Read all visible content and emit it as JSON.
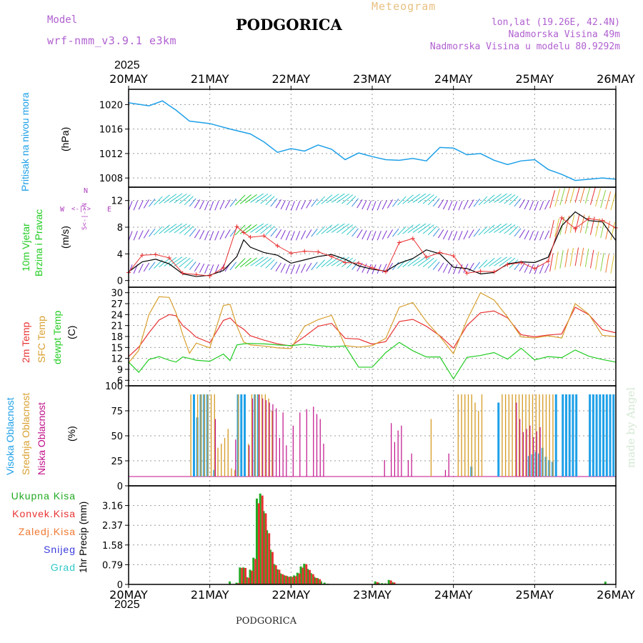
{
  "header": {
    "model_label": "Model",
    "model_value": "wrf-nmm_v3.9.1 e3km",
    "station": "PODGORICA",
    "product": "Meteogram",
    "lonlat": "lon,lat (19.26E, 42.4N)",
    "altitude": "Nadmorska Visina 49m",
    "model_altitude": "Nadmorska Visina u modelu 80.9292m",
    "year": "2025",
    "footer_station": "PODGORICA",
    "watermark": "made by Angel"
  },
  "colors": {
    "pressure": "#1ea0e8",
    "wind_speed": "#000000",
    "gust": "#e83232",
    "t2m": "#e83232",
    "sfc_temp": "#d8a030",
    "dewpoint": "#22cc22",
    "high_cloud": "#1ea0e8",
    "mid_cloud": "#d8a030",
    "low_cloud": "#c0108a",
    "total_precip": "#22aa22",
    "conv_precip": "#e83232",
    "frozen_precip": "#f07830",
    "snow": "#3a3adc",
    "hail": "#30c8c8",
    "compass": "#b040c0"
  },
  "time_axis": {
    "labels": [
      "20MAY",
      "21MAY",
      "22MAY",
      "23MAY",
      "24MAY",
      "25MAY",
      "26MAY"
    ],
    "bottom_year": "2025"
  },
  "legends": {
    "pressure": [
      "Pritisak na nivou mora",
      "(hPa)"
    ],
    "wind": [
      "10m Vjetar",
      "Brzina i Pravac",
      "(m/s)"
    ],
    "compass": {
      "n": "N",
      "s": "S",
      "w": "W",
      "e": "E",
      "axis_v": "S<-|->N",
      "axis_h": "<-|->"
    },
    "temp": [
      "2m Temp",
      "SFC Temp",
      "dewpt Temp",
      "(C)"
    ],
    "cloud": [
      "Visoka Oblacnost",
      "Srednja Oblacnost",
      "Niska Oblacnost",
      "(%)"
    ],
    "precip_series": [
      "Ukupna Kisa",
      "Konvek.Kisa",
      "Zaledj.Kisa",
      "Snijeg",
      "Grad"
    ],
    "precip_unit": "1hr Precip (mm)"
  },
  "chart_data": [
    {
      "type": "line",
      "panel": "pressure",
      "ylabel": "(hPa)",
      "yticks": [
        "1008",
        "1012",
        "1016",
        "1020"
      ],
      "ylim": [
        1006.5,
        1022.5
      ],
      "x_hours": [
        0,
        6,
        10,
        14,
        18,
        24,
        30,
        36,
        40,
        44,
        48,
        52,
        56,
        60,
        64,
        68,
        72,
        76,
        80,
        84,
        88,
        92,
        96,
        100,
        104,
        108,
        112,
        116,
        120,
        124,
        128,
        132,
        136,
        140,
        144
      ],
      "series": [
        {
          "name": "Pritisak na nivou mora",
          "values": [
            1020.3,
            1019.8,
            1020.6,
            1019.1,
            1017.3,
            1016.9,
            1016.0,
            1015.2,
            1013.9,
            1012.2,
            1012.8,
            1012.4,
            1013.4,
            1012.7,
            1011.0,
            1012.1,
            1011.5,
            1011.0,
            1010.9,
            1011.2,
            1010.8,
            1013.0,
            1012.9,
            1011.8,
            1012.0,
            1010.9,
            1010.2,
            1010.8,
            1011.0,
            1009.4,
            1008.6,
            1007.6,
            1007.8,
            1008.0,
            1007.8
          ]
        }
      ]
    },
    {
      "type": "line",
      "panel": "wind",
      "ylabel": "(m/s)",
      "yticks": [
        "0",
        "4",
        "8",
        "12"
      ],
      "ylim": [
        -1,
        14
      ],
      "x_hours": [
        0,
        4,
        8,
        12,
        16,
        20,
        24,
        28,
        32,
        34,
        36,
        40,
        44,
        48,
        52,
        56,
        60,
        64,
        68,
        72,
        76,
        80,
        84,
        88,
        92,
        96,
        100,
        104,
        108,
        112,
        116,
        120,
        124,
        128,
        132,
        136,
        140,
        144
      ],
      "series": [
        {
          "name": "Wind speed",
          "values": [
            1.3,
            2.8,
            3.2,
            2.5,
            1.0,
            0.6,
            0.8,
            1.5,
            3.6,
            6.1,
            5.0,
            4.2,
            3.8,
            2.6,
            3.1,
            3.6,
            3.9,
            3.2,
            2.2,
            1.7,
            1.4,
            2.6,
            3.3,
            4.6,
            4.0,
            2.0,
            1.8,
            1.0,
            1.2,
            2.5,
            2.8,
            2.7,
            3.5,
            8.2,
            10.3,
            9.0,
            8.8,
            6.0
          ]
        },
        {
          "name": "Gust",
          "values": [
            1.2,
            3.8,
            3.9,
            3.4,
            1.1,
            0.9,
            0.7,
            1.9,
            8.1,
            7.2,
            6.5,
            6.7,
            5.2,
            4.1,
            4.4,
            4.3,
            3.6,
            2.7,
            2.6,
            1.9,
            1.3,
            5.7,
            6.3,
            3.5,
            4.2,
            3.7,
            1.1,
            1.4,
            1.3,
            2.4,
            2.7,
            1.8,
            2.9,
            9.4,
            7.8,
            9.3,
            9.0,
            7.9
          ]
        }
      ]
    },
    {
      "type": "line",
      "panel": "temperature",
      "ylabel": "(C)",
      "yticks": [
        "6",
        "9",
        "12",
        "15",
        "18",
        "21",
        "24",
        "27",
        "30"
      ],
      "ylim": [
        4.5,
        31.5
      ],
      "x_hours": [
        0,
        3,
        6,
        9,
        12,
        14,
        16,
        18,
        20,
        24,
        28,
        30,
        32,
        34,
        36,
        40,
        44,
        48,
        52,
        56,
        60,
        64,
        68,
        72,
        76,
        80,
        84,
        88,
        92,
        96,
        100,
        104,
        108,
        112,
        116,
        120,
        124,
        128,
        132,
        136,
        140,
        144
      ],
      "series": [
        {
          "name": "2m Temp",
          "values": [
            12.5,
            15.1,
            19.0,
            22.5,
            24.0,
            23.7,
            21.0,
            19.5,
            17.8,
            16.3,
            22.4,
            23.1,
            21.2,
            20.0,
            18.2,
            17.0,
            16.0,
            15.4,
            18.0,
            20.8,
            21.6,
            17.5,
            17.3,
            15.9,
            16.6,
            22.1,
            22.7,
            20.8,
            18.2,
            14.8,
            21.0,
            24.5,
            25.0,
            23.1,
            18.5,
            17.9,
            18.4,
            18.7,
            26.0,
            24.0,
            19.9,
            19.0
          ]
        },
        {
          "name": "SFC Temp",
          "values": [
            10.8,
            14.2,
            24.0,
            28.9,
            28.7,
            24.5,
            18.5,
            13.4,
            16.2,
            14.9,
            26.5,
            26.8,
            20.9,
            16.5,
            15.7,
            15.4,
            14.9,
            14.7,
            20.8,
            22.6,
            23.8,
            15.5,
            15.1,
            15.5,
            17.5,
            26.0,
            27.3,
            22.1,
            18.0,
            13.3,
            22.5,
            30.0,
            28.0,
            23.3,
            17.9,
            17.6,
            18.2,
            17.6,
            27.0,
            24.1,
            18.3,
            18.0
          ]
        },
        {
          "name": "dewpt Temp",
          "values": [
            11.0,
            8.2,
            11.7,
            12.5,
            11.5,
            11.0,
            12.4,
            12.0,
            11.5,
            11.2,
            13.2,
            11.4,
            15.7,
            16.0,
            16.1,
            16.0,
            15.7,
            15.5,
            15.9,
            15.5,
            15.2,
            15.4,
            9.6,
            9.6,
            13.6,
            16.4,
            14.1,
            12.4,
            12.4,
            6.4,
            12.3,
            12.8,
            13.6,
            11.8,
            14.8,
            11.6,
            12.5,
            12.2,
            14.3,
            12.6,
            11.7,
            11.0
          ]
        }
      ]
    },
    {
      "type": "bar",
      "panel": "clouds",
      "ylabel": "(%)",
      "yticks": [
        "0",
        "25",
        "50",
        "75",
        "100"
      ],
      "ylim": [
        0,
        100
      ],
      "series": [
        {
          "name": "Visoka Oblacnost",
          "hours": [
            19,
            20,
            21,
            22,
            23,
            25,
            32,
            33,
            34,
            37,
            38,
            101,
            109,
            118,
            119,
            120,
            121,
            122,
            123,
            124,
            125,
            126,
            128,
            129,
            130,
            131,
            132,
            136,
            137,
            138,
            139,
            140,
            141,
            142,
            143
          ],
          "values": [
            100,
            72,
            100,
            100,
            100,
            8,
            100,
            100,
            100,
            100,
            100,
            12,
            90,
            25,
            27,
            30,
            28,
            35,
            24,
            20,
            18,
            100,
            100,
            100,
            100,
            100,
            100,
            100,
            100,
            100,
            100,
            100,
            100,
            100,
            100
          ]
        },
        {
          "name": "Srednja Oblacnost",
          "hours": [
            18,
            20,
            21,
            22,
            23,
            24,
            25,
            26,
            27,
            28,
            29,
            30,
            31,
            32,
            35,
            36,
            37,
            38,
            39,
            40,
            41,
            42,
            89,
            97,
            98,
            99,
            100,
            101,
            102,
            103,
            104,
            110,
            111,
            112,
            113,
            114,
            115,
            116,
            117,
            118,
            119,
            120,
            121,
            122,
            123,
            124,
            125
          ],
          "values": [
            100,
            100,
            100,
            100,
            100,
            100,
            100,
            35,
            40,
            47,
            58,
            10,
            8,
            100,
            40,
            100,
            100,
            100,
            100,
            100,
            95,
            80,
            70,
            100,
            100,
            100,
            100,
            100,
            90,
            80,
            100,
            100,
            100,
            100,
            100,
            100,
            100,
            100,
            100,
            100,
            100,
            100,
            100,
            100,
            100,
            100,
            100
          ]
        },
        {
          "name": "Niska Oblacnost",
          "hours": [
            25,
            31,
            35,
            36,
            38,
            39,
            40,
            41,
            42,
            43,
            44,
            45,
            46,
            48,
            50,
            52,
            54,
            55,
            56,
            57,
            75,
            77,
            78,
            79,
            80,
            82,
            83,
            93,
            94,
            114,
            115,
            116,
            117,
            118,
            119,
            120,
            121
          ],
          "values": [
            70,
            45,
            38,
            95,
            100,
            95,
            93,
            90,
            88,
            83,
            47,
            78,
            38,
            62,
            78,
            82,
            85,
            76,
            70,
            40,
            20,
            65,
            42,
            56,
            62,
            20,
            28,
            8,
            28,
            90,
            70,
            54,
            58,
            62,
            48,
            55,
            60
          ]
        }
      ]
    },
    {
      "type": "bar",
      "panel": "precipitation",
      "ylabel": "1hr Precip (mm)",
      "yticks": [
        "0",
        "0.79",
        "1.58",
        "2.37",
        "3.16"
      ],
      "ylim": [
        0,
        3.95
      ],
      "series": [
        {
          "name": "Ukupna Kisa",
          "hours": [
            30,
            32,
            33,
            34,
            35,
            36,
            37,
            38,
            39,
            40,
            41,
            42,
            43,
            44,
            45,
            46,
            47,
            48,
            49,
            50,
            51,
            52,
            53,
            54,
            55,
            56,
            57,
            58,
            59,
            73,
            74,
            75,
            76,
            77,
            78,
            141
          ],
          "values": [
            0.12,
            0.07,
            0.68,
            0.68,
            0.29,
            0.59,
            1.07,
            3.44,
            3.64,
            2.94,
            2.17,
            1.39,
            0.82,
            0.61,
            0.44,
            0.37,
            0.33,
            0.32,
            0.36,
            0.47,
            0.72,
            0.83,
            0.62,
            0.45,
            0.3,
            0.25,
            0.12,
            0.07,
            0.03,
            0.12,
            0.07,
            0.05,
            0.04,
            0.18,
            0.09,
            0.11
          ]
        },
        {
          "name": "Konvek.Kisa",
          "hours": [
            32,
            33,
            34,
            35,
            36,
            37,
            38,
            39,
            40,
            41,
            42,
            43,
            44,
            45,
            46,
            47,
            48,
            49,
            50,
            51,
            52,
            53,
            54,
            55,
            56,
            73,
            77,
            78
          ],
          "values": [
            0.05,
            0.66,
            0.66,
            0.27,
            0.55,
            1.02,
            3.25,
            3.56,
            2.85,
            2.05,
            1.3,
            0.77,
            0.59,
            0.41,
            0.35,
            0.3,
            0.3,
            0.33,
            0.44,
            0.67,
            0.81,
            0.58,
            0.41,
            0.26,
            0.21,
            0.09,
            0.16,
            0.08
          ]
        }
      ]
    }
  ]
}
